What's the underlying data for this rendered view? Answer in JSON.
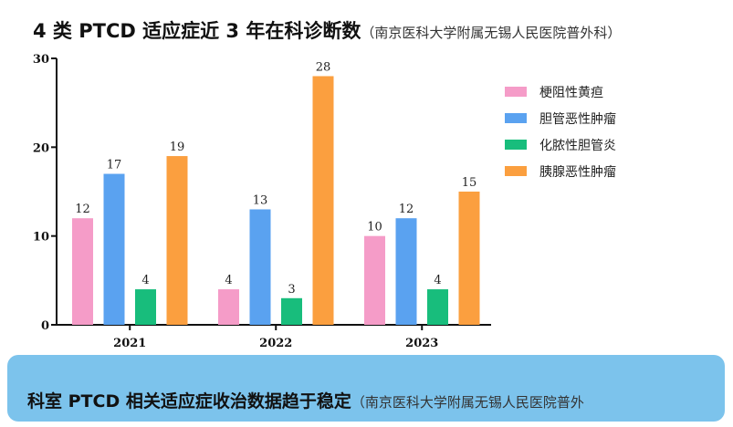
{
  "title": {
    "main": "4 类 PTCD 适应症近 3 年在科诊断数",
    "source": "（南京医科大学附属无锡人民医院普外科）"
  },
  "banner": {
    "main": "科室 PTCD 相关适应症收治数据趋于稳定",
    "source": "（南京医科大学附属无锡人民医院普外"
  },
  "chart_data": {
    "type": "bar",
    "title": "4 类 PTCD 适应症近 3 年在科诊断数",
    "subtitle": "（南京医科大学附属无锡人民医院普外科）",
    "xlabel": "",
    "ylabel": "",
    "categories": [
      "2021",
      "2022",
      "2023"
    ],
    "series": [
      {
        "name": "梗阻性黄疸",
        "color": "#f59cc8",
        "values": [
          12,
          4,
          10
        ]
      },
      {
        "name": "胆管恶性肿瘤",
        "color": "#5aa2f0",
        "values": [
          17,
          13,
          12
        ]
      },
      {
        "name": "化脓性胆管炎",
        "color": "#18bd7c",
        "values": [
          4,
          3,
          4
        ]
      },
      {
        "name": "胰腺恶性肿瘤",
        "color": "#fb9f3f",
        "values": [
          19,
          28,
          15
        ]
      }
    ],
    "ylim": [
      0,
      30
    ],
    "yticks": [
      0,
      10,
      20,
      30
    ],
    "grid": false,
    "legend_position": "right",
    "data_labels": true
  }
}
